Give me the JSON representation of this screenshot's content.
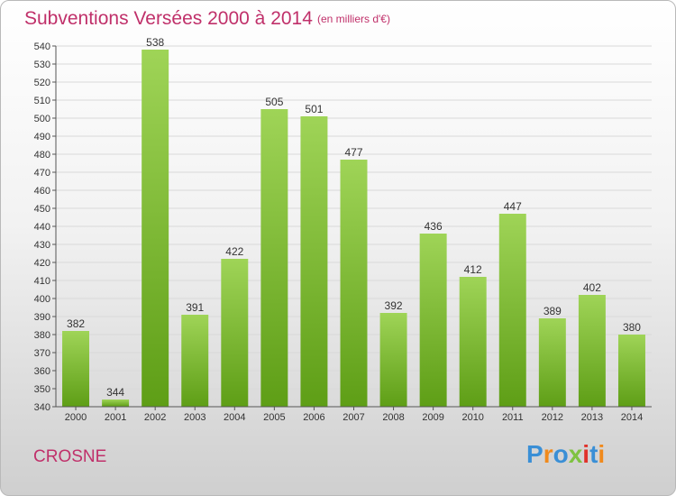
{
  "header": {
    "title": "Subventions Versées 2000 à 2014",
    "unit": "(en milliers d'€)"
  },
  "footer": {
    "town": "CROSNE",
    "logo_text": "Proxiti",
    "logo_colors": [
      "#3a8fd6",
      "#f08a1c",
      "#3a8fd6",
      "#7fc241",
      "#e0322b",
      "#3a8fd6",
      "#f08a1c"
    ]
  },
  "colors": {
    "title": "#c0306a",
    "bar_top": "#9fd457",
    "bar_bottom": "#5e9e16",
    "grid": "#d9d9d9"
  },
  "chart_data": {
    "type": "bar",
    "title": "Subventions Versées 2000 à 2014",
    "subtitle": "(en milliers d'€)",
    "xlabel": "",
    "ylabel": "",
    "categories": [
      "2000",
      "2001",
      "2002",
      "2003",
      "2004",
      "2005",
      "2006",
      "2007",
      "2008",
      "2009",
      "2010",
      "2011",
      "2012",
      "2013",
      "2014"
    ],
    "values": [
      382,
      344,
      538,
      391,
      422,
      505,
      501,
      477,
      392,
      436,
      412,
      447,
      389,
      402,
      380
    ],
    "ylim": [
      340,
      540
    ],
    "ytick_step": 10,
    "grid": true,
    "data_labels": true
  }
}
